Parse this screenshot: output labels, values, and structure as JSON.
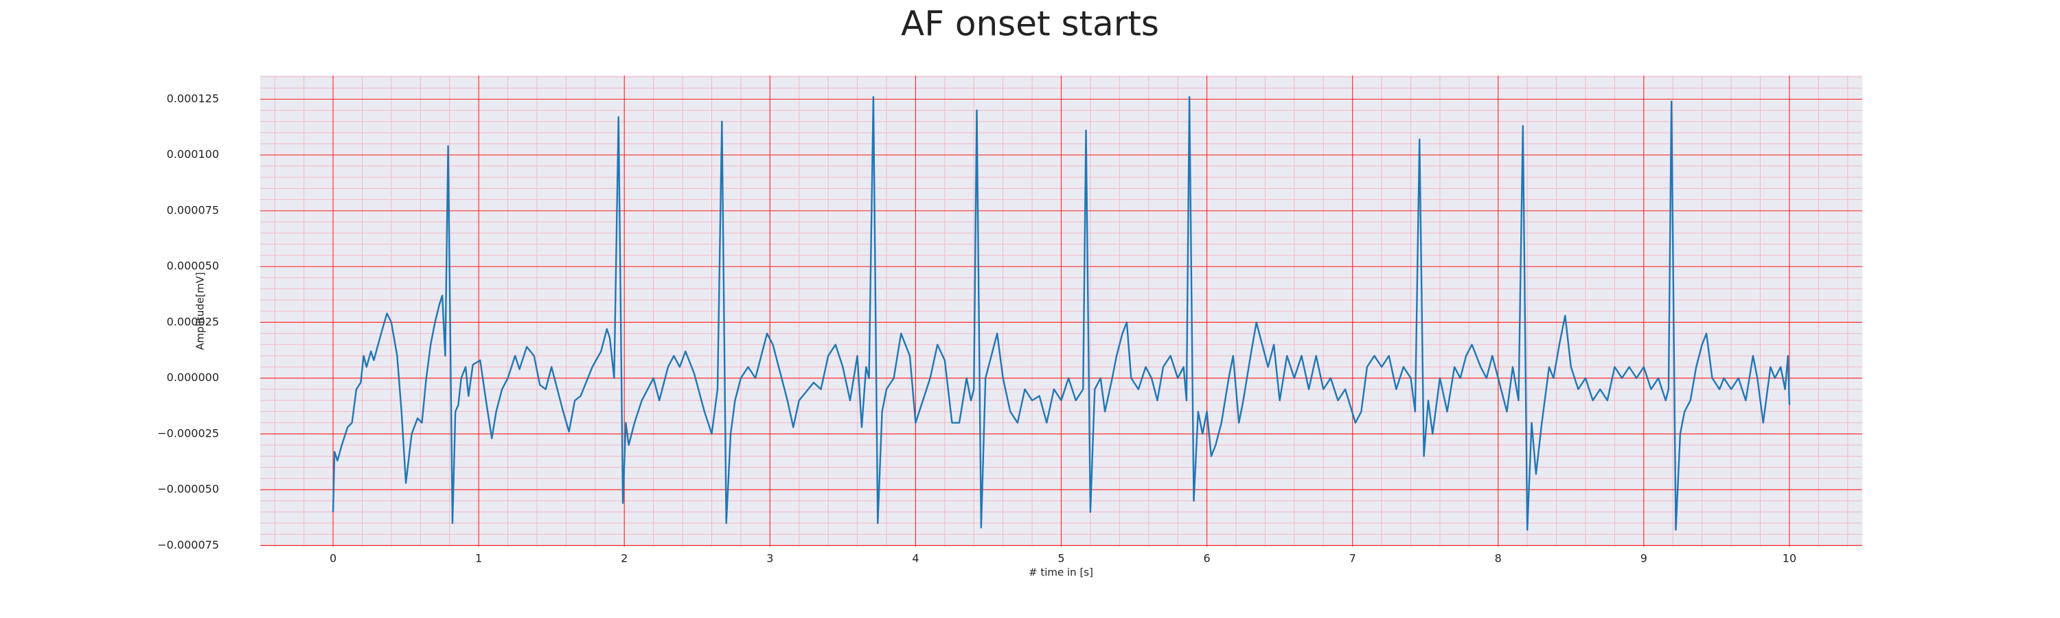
{
  "chart_data": {
    "type": "line",
    "title": "AF onset starts",
    "xlabel": "# time in [s]",
    "ylabel": "Amplitude[mV]",
    "xlim": [
      -0.5,
      10.5
    ],
    "xticks": [
      0,
      1,
      2,
      3,
      4,
      5,
      6,
      7,
      8,
      9,
      10
    ],
    "ylim": [
      -7.55e-05,
      0.0001356
    ],
    "yticks": [
      {
        "value": -7.5e-05,
        "label": "−0.000075"
      },
      {
        "value": -5e-05,
        "label": "−0.000050"
      },
      {
        "value": -2.5e-05,
        "label": "−0.000025"
      },
      {
        "value": 0,
        "label": "0.000000"
      },
      {
        "value": 2.5e-05,
        "label": "0.000025"
      },
      {
        "value": 5e-05,
        "label": "0.000050"
      },
      {
        "value": 7.5e-05,
        "label": "0.000075"
      },
      {
        "value": 0.0001,
        "label": "0.000100"
      },
      {
        "value": 0.000125,
        "label": "0.000125"
      }
    ],
    "grid": true,
    "minor_grid": true,
    "background": "#eaeaf2",
    "grid_color": "#ff3030",
    "minor_grid_color": "#f4b8c4",
    "series": [
      {
        "color": "#1f77b4",
        "x": [
          0,
          0.01,
          0.03,
          0.06,
          0.1,
          0.13,
          0.16,
          0.19,
          0.21,
          0.23,
          0.26,
          0.28,
          0.33,
          0.37,
          0.4,
          0.44,
          0.47,
          0.5,
          0.54,
          0.58,
          0.61,
          0.64,
          0.67,
          0.7,
          0.73,
          0.75,
          0.77,
          0.79,
          0.82,
          0.84,
          0.86,
          0.88,
          0.91,
          0.93,
          0.96,
          1.01,
          1.05,
          1.09,
          1.12,
          1.16,
          1.2,
          1.25,
          1.28,
          1.33,
          1.38,
          1.42,
          1.46,
          1.5,
          1.58,
          1.62,
          1.66,
          1.7,
          1.78,
          1.84,
          1.88,
          1.9,
          1.93,
          1.96,
          1.99,
          2.01,
          2.03,
          2.07,
          2.12,
          2.16,
          2.2,
          2.24,
          2.3,
          2.34,
          2.38,
          2.42,
          2.48,
          2.55,
          2.6,
          2.64,
          2.67,
          2.7,
          2.73,
          2.76,
          2.8,
          2.85,
          2.9,
          2.98,
          3.02,
          3.06,
          3.12,
          3.16,
          3.2,
          3.3,
          3.35,
          3.4,
          3.45,
          3.5,
          3.55,
          3.6,
          3.63,
          3.66,
          3.68,
          3.71,
          3.74,
          3.77,
          3.8,
          3.85,
          3.9,
          3.93,
          3.96,
          4.0,
          4.05,
          4.1,
          4.15,
          4.2,
          4.25,
          4.3,
          4.35,
          4.38,
          4.4,
          4.42,
          4.45,
          4.48,
          4.52,
          4.56,
          4.6,
          4.65,
          4.7,
          4.75,
          4.8,
          4.85,
          4.9,
          4.95,
          5.0,
          5.05,
          5.1,
          5.15,
          5.17,
          5.2,
          5.23,
          5.27,
          5.3,
          5.35,
          5.38,
          5.42,
          5.45,
          5.48,
          5.53,
          5.58,
          5.62,
          5.66,
          5.7,
          5.75,
          5.8,
          5.84,
          5.86,
          5.88,
          5.91,
          5.94,
          5.97,
          6.0,
          6.03,
          6.06,
          6.1,
          6.15,
          6.18,
          6.22,
          6.25,
          6.3,
          6.34,
          6.38,
          6.42,
          6.46,
          6.5,
          6.55,
          6.6,
          6.65,
          6.7,
          6.75,
          6.8,
          6.85,
          6.9,
          6.95,
          7.02,
          7.06,
          7.1,
          7.15,
          7.2,
          7.25,
          7.3,
          7.35,
          7.4,
          7.43,
          7.46,
          7.49,
          7.52,
          7.55,
          7.6,
          7.65,
          7.7,
          7.74,
          7.78,
          7.82,
          7.88,
          7.92,
          7.96,
          8.02,
          8.06,
          8.1,
          8.14,
          8.17,
          8.2,
          8.23,
          8.26,
          8.3,
          8.35,
          8.38,
          8.42,
          8.46,
          8.5,
          8.55,
          8.6,
          8.65,
          8.7,
          8.75,
          8.8,
          8.85,
          8.9,
          8.95,
          9.0,
          9.05,
          9.1,
          9.15,
          9.17,
          9.19,
          9.22,
          9.25,
          9.28,
          9.32,
          9.36,
          9.4,
          9.43,
          9.47,
          9.52,
          9.55,
          9.6,
          9.65,
          9.7,
          9.75,
          9.78,
          9.82,
          9.87,
          9.9,
          9.94,
          9.97,
          9.99,
          10.0
        ],
        "values": [
          -6e-05,
          -3.3e-05,
          -3.7e-05,
          -3e-05,
          -2.2e-05,
          -2e-05,
          -5e-06,
          -2e-06,
          1e-05,
          5e-06,
          1.2e-05,
          8e-06,
          2e-05,
          2.9e-05,
          2.5e-05,
          1e-05,
          -1.5e-05,
          -4.7e-05,
          -2.5e-05,
          -1.8e-05,
          -2e-05,
          0,
          1.5e-05,
          2.5e-05,
          3.3e-05,
          3.7e-05,
          1e-05,
          0.000104,
          -6.5e-05,
          -1.5e-05,
          -1.2e-05,
          0,
          5e-06,
          -8e-06,
          6e-06,
          8e-06,
          -1e-05,
          -2.7e-05,
          -1.5e-05,
          -5e-06,
          0,
          1e-05,
          4e-06,
          1.4e-05,
          1e-05,
          -3e-06,
          -5e-06,
          5e-06,
          -1.5e-05,
          -2.4e-05,
          -1e-05,
          -8e-06,
          5e-06,
          1.2e-05,
          2.2e-05,
          1.8e-05,
          0,
          0.000117,
          -5.6e-05,
          -2e-05,
          -3e-05,
          -2e-05,
          -1e-05,
          -5e-06,
          0,
          -1e-05,
          5e-06,
          1e-05,
          5e-06,
          1.2e-05,
          2e-06,
          -1.5e-05,
          -2.5e-05,
          -5e-06,
          0.000115,
          -6.5e-05,
          -2.5e-05,
          -1e-05,
          0,
          5e-06,
          0,
          2e-05,
          1.5e-05,
          5e-06,
          -1e-05,
          -2.2e-05,
          -1e-05,
          -2e-06,
          -5e-06,
          1e-05,
          1.5e-05,
          5e-06,
          -1e-05,
          1e-05,
          -2.2e-05,
          5e-06,
          0,
          0.000126,
          -6.5e-05,
          -1.5e-05,
          -5e-06,
          0,
          2e-05,
          1.5e-05,
          1e-05,
          -2e-05,
          -1e-05,
          0,
          1.5e-05,
          8e-06,
          -2e-05,
          -2e-05,
          0,
          -1e-05,
          -5e-06,
          0.00012,
          -6.7e-05,
          0,
          1e-05,
          2e-05,
          0,
          -1.5e-05,
          -2e-05,
          -5e-06,
          -1e-05,
          -8e-06,
          -2e-05,
          -5e-06,
          -1e-05,
          0,
          -1e-05,
          -5e-06,
          0.000111,
          -6e-05,
          -5e-06,
          0,
          -1.5e-05,
          0,
          1e-05,
          2e-05,
          2.5e-05,
          0,
          -5e-06,
          5e-06,
          0,
          -1e-05,
          5e-06,
          1e-05,
          0,
          5e-06,
          -1e-05,
          0.000126,
          -5.5e-05,
          -1.5e-05,
          -2.5e-05,
          -1.5e-05,
          -3.5e-05,
          -3e-05,
          -2e-05,
          0,
          1e-05,
          -2e-05,
          -1e-05,
          1e-05,
          2.5e-05,
          1.5e-05,
          5e-06,
          1.5e-05,
          -1e-05,
          1e-05,
          0,
          1e-05,
          -5e-06,
          1e-05,
          -5e-06,
          0,
          -1e-05,
          -5e-06,
          -2e-05,
          -1.5e-05,
          5e-06,
          1e-05,
          5e-06,
          1e-05,
          -5e-06,
          5e-06,
          0,
          -1.5e-05,
          0.000107,
          -3.5e-05,
          -1e-05,
          -2.5e-05,
          0,
          -1.5e-05,
          5e-06,
          0,
          1e-05,
          1.5e-05,
          5e-06,
          0,
          1e-05,
          -5e-06,
          -1.5e-05,
          5e-06,
          -1e-05,
          0.000113,
          -6.8e-05,
          -2e-05,
          -4.3e-05,
          -2e-05,
          5e-06,
          0,
          1.5e-05,
          2.8e-05,
          5e-06,
          -5e-06,
          0,
          -1e-05,
          -5e-06,
          -1e-05,
          5e-06,
          0,
          5e-06,
          0,
          5e-06,
          -5e-06,
          0,
          -1e-05,
          -5e-06,
          0.000124,
          -6.8e-05,
          -2.5e-05,
          -1.5e-05,
          -1e-05,
          5e-06,
          1.5e-05,
          2e-05,
          0,
          -5e-06,
          0,
          -5e-06,
          0,
          -1e-05,
          1e-05,
          0,
          -2e-05,
          5e-06,
          0,
          5e-06,
          -5e-06,
          1e-05,
          -1.2e-05
        ]
      }
    ]
  }
}
